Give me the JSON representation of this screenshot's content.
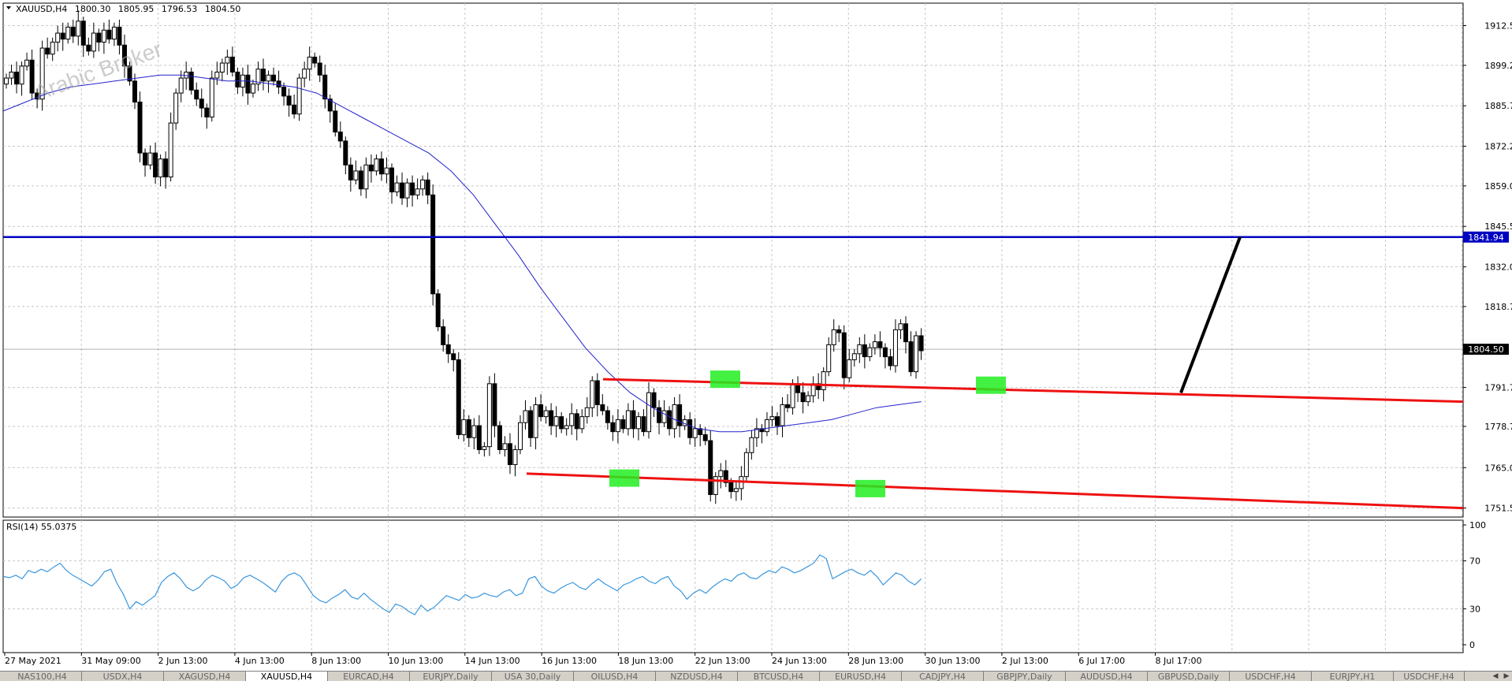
{
  "symbol_info": {
    "label": "XAUUSD,H4",
    "open": "1800.30",
    "high": "1805.95",
    "low": "1796.53",
    "close": "1804.50"
  },
  "watermark": "Arabic Broker",
  "colors": {
    "bull": "#ffffff",
    "bear": "#000000",
    "ma": "#2222cc",
    "level_line": "#0000c0",
    "channel": "#ee1111",
    "highlight": "#22ee22",
    "rsi": "#3a96dd",
    "price_tag": "#000000",
    "level_tag": "#0000c0"
  },
  "chart_data": [
    {
      "type": "line",
      "chart": "price",
      "price_axis": {
        "ticks": [
          "1912.50",
          "1899.25",
          "1885.75",
          "1872.25",
          "1859.00",
          "1845.50",
          "1832.00",
          "1818.75",
          "1791.75",
          "1778.75",
          "1765.00",
          "1751.50"
        ],
        "range": [
          1748.5,
          1920
        ]
      },
      "time_axis": {
        "ticks": [
          "27 May 2021",
          "31 May 09:00",
          "2 Jun 13:00",
          "4 Jun 13:00",
          "8 Jun 13:00",
          "10 Jun 13:00",
          "14 Jun 13:00",
          "16 Jun 13:00",
          "18 Jun 13:00",
          "22 Jun 13:00",
          "24 Jun 13:00",
          "28 Jun 13:00",
          "30 Jun 13:00",
          "2 Jul 13:00",
          "6 Jul 17:00",
          "8 Jul 17:00"
        ]
      },
      "current_price": "1804.50",
      "horizontal_level": "1841.94",
      "series": [
        {
          "kind": "close",
          "values": [
            1895,
            1897,
            1893,
            1899,
            1901,
            1890,
            1888,
            1905,
            1903,
            1907,
            1910,
            1908,
            1912,
            1909,
            1914,
            1906,
            1904,
            1910,
            1907,
            1911,
            1908,
            1912,
            1906,
            1899,
            1894,
            1887,
            1870,
            1866,
            1870,
            1862,
            1868,
            1862,
            1880,
            1890,
            1895,
            1897,
            1891,
            1888,
            1885,
            1882,
            1895,
            1897,
            1900,
            1902,
            1897,
            1892,
            1896,
            1890,
            1893,
            1898,
            1894,
            1896,
            1894,
            1892,
            1889,
            1886,
            1883,
            1895,
            1898,
            1902,
            1900,
            1896,
            1888,
            1884,
            1877,
            1874,
            1866,
            1861,
            1864,
            1858,
            1866,
            1864,
            1868,
            1863,
            1865,
            1857,
            1860,
            1855,
            1860,
            1856,
            1858,
            1861,
            1856,
            1823,
            1812,
            1806,
            1803,
            1801,
            1776,
            1781,
            1775,
            1779,
            1771,
            1772,
            1793,
            1779,
            1771,
            1773,
            1766,
            1771,
            1780,
            1784,
            1775,
            1786,
            1782,
            1784,
            1779,
            1782,
            1778,
            1779,
            1783,
            1778,
            1782,
            1785,
            1794,
            1786,
            1784,
            1780,
            1777,
            1781,
            1778,
            1784,
            1778,
            1782,
            1777,
            1790,
            1785,
            1780,
            1784,
            1778,
            1786,
            1779,
            1781,
            1775,
            1778,
            1776,
            1774,
            1756,
            1762,
            1764,
            1760,
            1757,
            1758,
            1762,
            1770,
            1775,
            1778,
            1777,
            1781,
            1782,
            1779,
            1786,
            1785,
            1793,
            1790,
            1787,
            1789,
            1793,
            1791,
            1797,
            1806,
            1811,
            1810,
            1795,
            1801,
            1803,
            1806,
            1802,
            1805,
            1807,
            1805,
            1802,
            1799,
            1811,
            1813,
            1807,
            1797,
            1809,
            1804
          ],
          "note": "approximate candle closes, H4 bars"
        },
        {
          "kind": "moving_average",
          "values": [
            1884,
            1887,
            1890,
            1892,
            1893,
            1894,
            1895,
            1896,
            1896,
            1895,
            1894,
            1894,
            1893,
            1892,
            1890,
            1886,
            1882,
            1878,
            1874,
            1870,
            1864,
            1856,
            1846,
            1836,
            1825,
            1815,
            1805,
            1797,
            1790,
            1785,
            1781,
            1778,
            1777,
            1777,
            1778,
            1779,
            1780,
            1781,
            1783,
            1785,
            1786,
            1787
          ]
        },
        {
          "kind": "channel_upper",
          "from": [
            "18 Jun 13:00",
            1794.5
          ],
          "to": [
            "8 Jul 17:00+",
            1787.0
          ]
        },
        {
          "kind": "channel_lower",
          "from": [
            "16 Jun 13:00",
            1763.0
          ],
          "to": [
            "8 Jul 17:00+",
            1751.5
          ]
        },
        {
          "kind": "projection",
          "from": [
            "8 Jul 17:00",
            1790.0
          ],
          "to": [
            "after 8 Jul",
            1841.94
          ]
        }
      ]
    },
    {
      "type": "line",
      "chart": "indicator",
      "title": "RSI(14) 55.0375",
      "y_ticks": [
        "100",
        "70",
        "30",
        "0"
      ],
      "ylim": [
        0,
        100
      ],
      "series": [
        {
          "name": "RSI(14)",
          "values": [
            57,
            56,
            58,
            55,
            62,
            60,
            63,
            61,
            65,
            68,
            62,
            58,
            55,
            52,
            49,
            54,
            61,
            63,
            51,
            42,
            30,
            36,
            33,
            37,
            41,
            52,
            57,
            60,
            55,
            48,
            45,
            48,
            54,
            58,
            56,
            53,
            47,
            50,
            56,
            58,
            55,
            52,
            48,
            44,
            53,
            58,
            60,
            57,
            49,
            41,
            37,
            35,
            39,
            42,
            46,
            40,
            38,
            43,
            38,
            34,
            30,
            27,
            34,
            32,
            28,
            25,
            33,
            28,
            31,
            36,
            41,
            39,
            37,
            42,
            39,
            40,
            43,
            41,
            40,
            44,
            46,
            41,
            43,
            55,
            57,
            49,
            45,
            43,
            47,
            50,
            52,
            48,
            46,
            51,
            55,
            51,
            48,
            45,
            50,
            52,
            55,
            57,
            53,
            51,
            55,
            57,
            49,
            45,
            38,
            43,
            46,
            43,
            48,
            52,
            55,
            53,
            58,
            60,
            56,
            55,
            59,
            62,
            60,
            65,
            63,
            60,
            62,
            65,
            68,
            75,
            72,
            55,
            58,
            61,
            63,
            60,
            58,
            62,
            57,
            50,
            55,
            60,
            58,
            53,
            50,
            55
          ]
        }
      ]
    }
  ],
  "tabs": [
    {
      "label": "NAS100,H4"
    },
    {
      "label": "USDX,H4"
    },
    {
      "label": "XAGUSD,H4"
    },
    {
      "label": "XAUUSD,H4",
      "active": true
    },
    {
      "label": "EURCAD,H4"
    },
    {
      "label": "EURJPY,Daily"
    },
    {
      "label": "USA 30,Daily"
    },
    {
      "label": "OILUSD,H4"
    },
    {
      "label": "NZDUSD,H4"
    },
    {
      "label": "BTCUSD,H4"
    },
    {
      "label": "EURUSD,H4"
    },
    {
      "label": "CADJPY,H4"
    },
    {
      "label": "GBPJPY,Daily"
    },
    {
      "label": "AUDUSD,H4"
    },
    {
      "label": "GBPUSD,Daily"
    },
    {
      "label": "USDCHF,H4"
    },
    {
      "label": "EURJPY,H1"
    },
    {
      "label": "USDCHF,H4"
    }
  ]
}
